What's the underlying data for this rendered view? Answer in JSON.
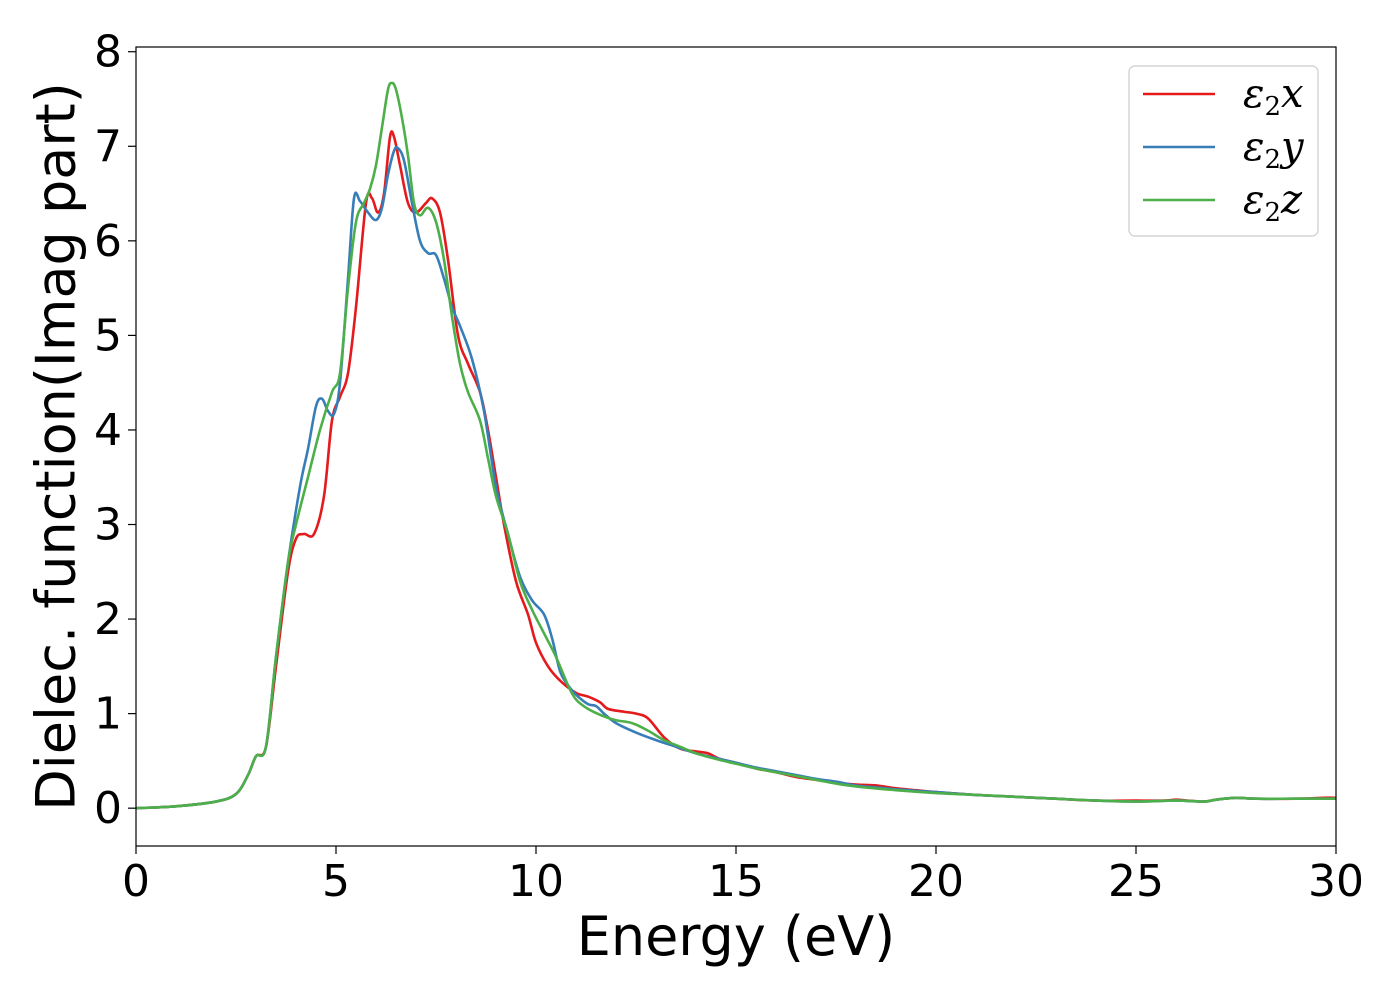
{
  "chart_data": {
    "type": "line",
    "title": "",
    "xlabel": "Energy (eV)",
    "ylabel": "Dielec. function(Imag part)",
    "xlim": [
      0,
      30
    ],
    "ylim": [
      -0.4,
      8.05
    ],
    "xticks": [
      0,
      5,
      10,
      15,
      20,
      25,
      30
    ],
    "yticks": [
      0,
      1,
      2,
      3,
      4,
      5,
      6,
      7,
      8
    ],
    "xtick_labels": [
      "0",
      "5",
      "10",
      "15",
      "20",
      "25",
      "30"
    ],
    "ytick_labels": [
      "0",
      "1",
      "2",
      "3",
      "4",
      "5",
      "6",
      "7",
      "8"
    ],
    "grid": false,
    "legend_position": "top-right",
    "series": [
      {
        "name": "ε2x",
        "legend": {
          "base": "ε",
          "sub": "2",
          "suffix": "x"
        },
        "color": "#e41a1c",
        "points": [
          [
            0,
            0
          ],
          [
            1,
            0.02
          ],
          [
            2,
            0.07
          ],
          [
            2.5,
            0.15
          ],
          [
            2.8,
            0.35
          ],
          [
            3.0,
            0.55
          ],
          [
            3.25,
            0.65
          ],
          [
            3.5,
            1.5
          ],
          [
            3.8,
            2.5
          ],
          [
            4.0,
            2.85
          ],
          [
            4.2,
            2.9
          ],
          [
            4.45,
            2.9
          ],
          [
            4.7,
            3.3
          ],
          [
            4.9,
            4.1
          ],
          [
            5.1,
            4.35
          ],
          [
            5.3,
            4.6
          ],
          [
            5.5,
            5.3
          ],
          [
            5.75,
            6.4
          ],
          [
            5.9,
            6.45
          ],
          [
            6.05,
            6.3
          ],
          [
            6.2,
            6.5
          ],
          [
            6.35,
            7.1
          ],
          [
            6.45,
            7.1
          ],
          [
            6.6,
            6.8
          ],
          [
            6.8,
            6.4
          ],
          [
            7.0,
            6.3
          ],
          [
            7.25,
            6.4
          ],
          [
            7.4,
            6.45
          ],
          [
            7.6,
            6.3
          ],
          [
            7.8,
            5.8
          ],
          [
            8.05,
            5.0
          ],
          [
            8.3,
            4.7
          ],
          [
            8.6,
            4.4
          ],
          [
            8.8,
            4.0
          ],
          [
            9.0,
            3.5
          ],
          [
            9.2,
            3.0
          ],
          [
            9.5,
            2.4
          ],
          [
            9.8,
            2.05
          ],
          [
            10.0,
            1.75
          ],
          [
            10.3,
            1.5
          ],
          [
            10.6,
            1.35
          ],
          [
            11.0,
            1.22
          ],
          [
            11.3,
            1.18
          ],
          [
            11.6,
            1.12
          ],
          [
            11.8,
            1.05
          ],
          [
            12.2,
            1.02
          ],
          [
            12.5,
            1.0
          ],
          [
            12.8,
            0.95
          ],
          [
            13.2,
            0.75
          ],
          [
            13.6,
            0.63
          ],
          [
            14.0,
            0.6
          ],
          [
            14.3,
            0.58
          ],
          [
            14.6,
            0.52
          ],
          [
            15.0,
            0.48
          ],
          [
            15.5,
            0.42
          ],
          [
            16.0,
            0.38
          ],
          [
            16.5,
            0.33
          ],
          [
            17.0,
            0.3
          ],
          [
            17.5,
            0.27
          ],
          [
            18.0,
            0.25
          ],
          [
            18.5,
            0.24
          ],
          [
            19.0,
            0.21
          ],
          [
            19.5,
            0.19
          ],
          [
            20.0,
            0.17
          ],
          [
            21.0,
            0.14
          ],
          [
            22.0,
            0.12
          ],
          [
            23.0,
            0.1
          ],
          [
            24.0,
            0.08
          ],
          [
            25.0,
            0.08
          ],
          [
            25.7,
            0.08
          ],
          [
            26.0,
            0.09
          ],
          [
            26.3,
            0.08
          ],
          [
            26.7,
            0.07
          ],
          [
            27.0,
            0.09
          ],
          [
            27.5,
            0.11
          ],
          [
            28.0,
            0.1
          ],
          [
            29.0,
            0.1
          ],
          [
            29.7,
            0.11
          ],
          [
            30.0,
            0.11
          ]
        ]
      },
      {
        "name": "ε2y",
        "legend": {
          "base": "ε",
          "sub": "2",
          "suffix": "y"
        },
        "color": "#377eb8",
        "points": [
          [
            0,
            0
          ],
          [
            1,
            0.02
          ],
          [
            2,
            0.07
          ],
          [
            2.5,
            0.15
          ],
          [
            2.8,
            0.35
          ],
          [
            3.0,
            0.55
          ],
          [
            3.25,
            0.65
          ],
          [
            3.5,
            1.6
          ],
          [
            3.8,
            2.6
          ],
          [
            4.1,
            3.4
          ],
          [
            4.3,
            3.8
          ],
          [
            4.5,
            4.25
          ],
          [
            4.65,
            4.33
          ],
          [
            4.8,
            4.2
          ],
          [
            4.95,
            4.17
          ],
          [
            5.1,
            4.5
          ],
          [
            5.3,
            5.6
          ],
          [
            5.45,
            6.45
          ],
          [
            5.6,
            6.42
          ],
          [
            5.8,
            6.3
          ],
          [
            6.0,
            6.22
          ],
          [
            6.15,
            6.35
          ],
          [
            6.3,
            6.7
          ],
          [
            6.45,
            6.95
          ],
          [
            6.55,
            6.98
          ],
          [
            6.7,
            6.85
          ],
          [
            6.9,
            6.4
          ],
          [
            7.1,
            6.0
          ],
          [
            7.3,
            5.87
          ],
          [
            7.5,
            5.85
          ],
          [
            7.7,
            5.6
          ],
          [
            7.9,
            5.3
          ],
          [
            8.1,
            5.1
          ],
          [
            8.4,
            4.75
          ],
          [
            8.7,
            4.2
          ],
          [
            9.0,
            3.4
          ],
          [
            9.3,
            2.9
          ],
          [
            9.6,
            2.45
          ],
          [
            9.9,
            2.2
          ],
          [
            10.2,
            2.05
          ],
          [
            10.4,
            1.8
          ],
          [
            10.6,
            1.45
          ],
          [
            10.8,
            1.3
          ],
          [
            11.0,
            1.2
          ],
          [
            11.3,
            1.1
          ],
          [
            11.5,
            1.08
          ],
          [
            11.7,
            1.0
          ],
          [
            12.0,
            0.9
          ],
          [
            12.5,
            0.8
          ],
          [
            13.0,
            0.72
          ],
          [
            13.5,
            0.65
          ],
          [
            14.0,
            0.58
          ],
          [
            14.5,
            0.53
          ],
          [
            15.0,
            0.48
          ],
          [
            15.5,
            0.43
          ],
          [
            16.0,
            0.39
          ],
          [
            16.5,
            0.35
          ],
          [
            17.0,
            0.31
          ],
          [
            17.5,
            0.28
          ],
          [
            18.0,
            0.24
          ],
          [
            18.5,
            0.22
          ],
          [
            19.0,
            0.2
          ],
          [
            20.0,
            0.17
          ],
          [
            21.0,
            0.14
          ],
          [
            22.0,
            0.12
          ],
          [
            23.0,
            0.1
          ],
          [
            24.0,
            0.08
          ],
          [
            25.0,
            0.07
          ],
          [
            26.0,
            0.08
          ],
          [
            26.7,
            0.07
          ],
          [
            27.0,
            0.09
          ],
          [
            27.5,
            0.11
          ],
          [
            28.0,
            0.1
          ],
          [
            29.0,
            0.1
          ],
          [
            30.0,
            0.1
          ]
        ]
      },
      {
        "name": "ε2z",
        "legend": {
          "base": "ε",
          "sub": "2",
          "suffix": "z"
        },
        "color": "#4daf4a",
        "points": [
          [
            0,
            0
          ],
          [
            1,
            0.02
          ],
          [
            2,
            0.07
          ],
          [
            2.5,
            0.15
          ],
          [
            2.8,
            0.35
          ],
          [
            3.0,
            0.55
          ],
          [
            3.25,
            0.65
          ],
          [
            3.5,
            1.6
          ],
          [
            3.8,
            2.6
          ],
          [
            4.0,
            3.0
          ],
          [
            4.3,
            3.5
          ],
          [
            4.6,
            4.0
          ],
          [
            4.9,
            4.4
          ],
          [
            5.1,
            4.6
          ],
          [
            5.3,
            5.5
          ],
          [
            5.5,
            6.2
          ],
          [
            5.7,
            6.4
          ],
          [
            5.85,
            6.55
          ],
          [
            6.0,
            6.8
          ],
          [
            6.15,
            7.2
          ],
          [
            6.3,
            7.6
          ],
          [
            6.4,
            7.67
          ],
          [
            6.5,
            7.6
          ],
          [
            6.65,
            7.3
          ],
          [
            6.8,
            6.9
          ],
          [
            6.95,
            6.4
          ],
          [
            7.1,
            6.27
          ],
          [
            7.3,
            6.35
          ],
          [
            7.5,
            6.2
          ],
          [
            7.7,
            5.8
          ],
          [
            7.9,
            5.2
          ],
          [
            8.1,
            4.7
          ],
          [
            8.3,
            4.4
          ],
          [
            8.6,
            4.1
          ],
          [
            8.8,
            3.7
          ],
          [
            9.0,
            3.3
          ],
          [
            9.3,
            2.9
          ],
          [
            9.6,
            2.4
          ],
          [
            9.9,
            2.1
          ],
          [
            10.2,
            1.85
          ],
          [
            10.5,
            1.6
          ],
          [
            10.8,
            1.3
          ],
          [
            11.0,
            1.15
          ],
          [
            11.3,
            1.05
          ],
          [
            11.7,
            0.97
          ],
          [
            12.0,
            0.93
          ],
          [
            12.4,
            0.9
          ],
          [
            12.8,
            0.82
          ],
          [
            13.2,
            0.72
          ],
          [
            13.6,
            0.65
          ],
          [
            14.0,
            0.58
          ],
          [
            14.5,
            0.52
          ],
          [
            15.0,
            0.47
          ],
          [
            15.5,
            0.42
          ],
          [
            16.0,
            0.38
          ],
          [
            16.5,
            0.34
          ],
          [
            17.0,
            0.3
          ],
          [
            17.5,
            0.26
          ],
          [
            18.0,
            0.23
          ],
          [
            19.0,
            0.19
          ],
          [
            20.0,
            0.16
          ],
          [
            21.0,
            0.14
          ],
          [
            22.0,
            0.12
          ],
          [
            23.0,
            0.1
          ],
          [
            24.0,
            0.08
          ],
          [
            25.0,
            0.07
          ],
          [
            26.0,
            0.08
          ],
          [
            26.7,
            0.07
          ],
          [
            27.0,
            0.09
          ],
          [
            27.5,
            0.11
          ],
          [
            28.0,
            0.1
          ],
          [
            29.0,
            0.1
          ],
          [
            30.0,
            0.1
          ]
        ]
      }
    ]
  }
}
